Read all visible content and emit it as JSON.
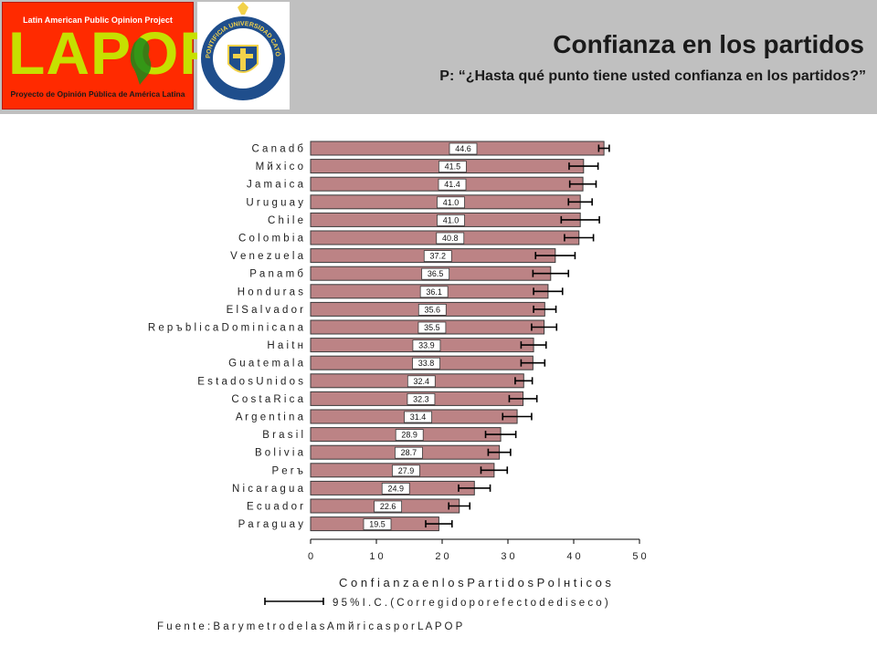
{
  "header": {
    "logo_top": "Latin American Public Opinion Project",
    "logo_word": "LAPOP",
    "logo_bottom": "Proyecto de Opinión Pública de América Latina",
    "seal_text": "PONTIFICIA UNIVERSIDAD CATÓLICA DE CHILE",
    "title": "Confianza en los partidos",
    "subtitle": "P: “¿Hasta qué punto tiene usted confianza en los partidos?”"
  },
  "colors": {
    "bar": "#bc8385",
    "header_bg": "#c0c0c0",
    "logo_bg": "#ff2a00",
    "logo_text": "#c6e000"
  },
  "chart_data": {
    "type": "bar",
    "orientation": "horizontal",
    "xlabel": "C o n f i a n z a   e n   l o s   P a r t i d o s   P o l н t i c o s",
    "xlim": [
      0,
      50
    ],
    "xticks": [
      "0",
      "1 0",
      "2 0",
      "3 0",
      "4 0",
      "5 0"
    ],
    "xtick_values": [
      0,
      10,
      20,
      30,
      40,
      50
    ],
    "legend_label": "9 5 %  I . C .  ( C o r r e g i d o  p o r  e f e c t o  d e  d i s e c o )",
    "source": "F u e n t e :  B a r y m e t r o  d e  l a s  A m й r i c a s  p o r  L A P O P",
    "categories": [
      "C a n a d б",
      "M й x i c o",
      "J a m a i c a",
      "U r u g u a y",
      "C h i l e",
      "C o l o m b i a",
      "V e n e z u e l a",
      "P a n a m б",
      "H o n d u r a s",
      "E l  S a l v a d o r",
      "R e p ъ b l i c a  D o m i n i c a n a",
      "H a i t н",
      "G u a t e m a l a",
      "E s t a d o s  U n i d o s",
      "C o s t a  R i c a",
      "A r g e n t i n a",
      "B r a s i l",
      "B o l i v i a",
      "P e r ъ",
      "N i c a r a g u a",
      "E c u a d o r",
      "P a r a g u a y"
    ],
    "values": [
      44.6,
      41.5,
      41.4,
      41.0,
      41.0,
      40.8,
      37.2,
      36.5,
      36.1,
      35.6,
      35.5,
      33.9,
      33.8,
      32.4,
      32.3,
      31.4,
      28.9,
      28.7,
      27.9,
      24.9,
      22.6,
      19.5
    ],
    "value_labels": [
      "44.6",
      "41.5",
      "41.4",
      "41.0",
      "41.0",
      "40.8",
      "37.2",
      "36.5",
      "36.1",
      "35.6",
      "35.5",
      "33.9",
      "33.8",
      "32.4",
      "32.3",
      "31.4",
      "28.9",
      "28.7",
      "27.9",
      "24.9",
      "22.6",
      "19.5"
    ],
    "ci_low": [
      43.8,
      39.3,
      39.4,
      39.2,
      38.1,
      38.6,
      34.2,
      33.8,
      33.9,
      33.9,
      33.6,
      32.0,
      32.0,
      31.1,
      30.2,
      29.2,
      26.6,
      27.0,
      25.9,
      22.5,
      21.0,
      17.5
    ],
    "ci_high": [
      45.4,
      43.7,
      43.4,
      42.8,
      43.9,
      43.0,
      40.2,
      39.2,
      38.3,
      37.3,
      37.4,
      35.8,
      35.6,
      33.7,
      34.4,
      33.6,
      31.2,
      30.4,
      29.9,
      27.3,
      24.2,
      21.5
    ],
    "grid": false
  }
}
